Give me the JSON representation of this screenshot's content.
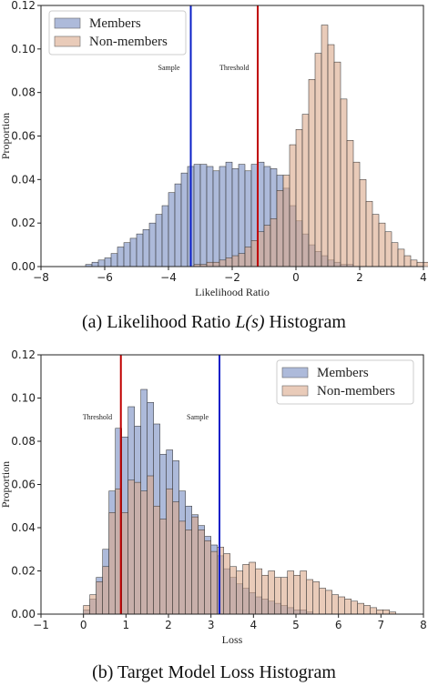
{
  "colors": {
    "members": "#8d9fcc",
    "non_members": "#dba98a",
    "threshold_line": "#c00000",
    "sample_line": "#0a1fc8"
  },
  "chart_data": [
    {
      "type": "histogram",
      "title": "",
      "caption": "(a) Likelihood Ratio L(s) Histogram",
      "caption_prefix": "(a) Likelihood Ratio ",
      "caption_math": "L(s)",
      "caption_suffix": " Histogram",
      "xlabel": "Likelihood Ratio",
      "ylabel": "Proportion",
      "xlim": [
        -8,
        4
      ],
      "ylim": [
        0,
        0.12
      ],
      "xticks": [
        -8,
        -6,
        -4,
        -2,
        0,
        2,
        4
      ],
      "xtick_labels": [
        "−8",
        "−6",
        "−4",
        "−2",
        "0",
        "2",
        "4"
      ],
      "yticks": [
        0,
        0.02,
        0.04,
        0.06,
        0.08,
        0.1,
        0.12
      ],
      "ytick_labels": [
        "0.00",
        "0.02",
        "0.04",
        "0.06",
        "0.08",
        "0.10",
        "0.12"
      ],
      "legend_position": "top-left",
      "series": [
        {
          "name": "Members",
          "color": "#8d9fcc",
          "bin_start": -6.6,
          "bin_width": 0.2,
          "values": [
            0.001,
            0.002,
            0.003,
            0.004,
            0.006,
            0.009,
            0.011,
            0.013,
            0.015,
            0.017,
            0.02,
            0.024,
            0.028,
            0.034,
            0.038,
            0.043,
            0.046,
            0.047,
            0.047,
            0.046,
            0.044,
            0.046,
            0.048,
            0.045,
            0.047,
            0.044,
            0.047,
            0.048,
            0.046,
            0.045,
            0.042,
            0.036,
            0.028,
            0.021,
            0.015,
            0.01,
            0.007,
            0.005,
            0.003,
            0.002,
            0.001,
            0.001
          ]
        },
        {
          "name": "Non-members",
          "color": "#dba98a",
          "bin_start": -3.2,
          "bin_width": 0.2,
          "values": [
            0.001,
            0.001,
            0.002,
            0.002,
            0.003,
            0.004,
            0.005,
            0.006,
            0.009,
            0.012,
            0.016,
            0.019,
            0.022,
            0.035,
            0.042,
            0.056,
            0.063,
            0.07,
            0.086,
            0.098,
            0.111,
            0.102,
            0.094,
            0.077,
            0.058,
            0.048,
            0.04,
            0.03,
            0.024,
            0.02,
            0.016,
            0.011,
            0.008,
            0.005,
            0.003,
            0.002,
            0.002,
            0.001,
            0.001,
            0.001
          ]
        }
      ],
      "vlines": [
        {
          "label": "Sample",
          "x": -3.3,
          "color": "#0a1fc8"
        },
        {
          "label": "Threshold",
          "x": -1.2,
          "color": "#c00000"
        }
      ]
    },
    {
      "type": "histogram",
      "title": "",
      "caption": "(b) Target Model Loss Histogram",
      "xlabel": "Loss",
      "ylabel": "Proportion",
      "xlim": [
        -1,
        8
      ],
      "ylim": [
        0,
        0.12
      ],
      "xticks": [
        -1,
        0,
        1,
        2,
        3,
        4,
        5,
        6,
        7,
        8
      ],
      "xtick_labels": [
        "−1",
        "0",
        "1",
        "2",
        "3",
        "4",
        "5",
        "6",
        "7",
        "8"
      ],
      "yticks": [
        0,
        0.02,
        0.04,
        0.06,
        0.08,
        0.1,
        0.12
      ],
      "ytick_labels": [
        "0.00",
        "0.02",
        "0.04",
        "0.06",
        "0.08",
        "0.10",
        "0.12"
      ],
      "legend_position": "top-right",
      "series": [
        {
          "name": "Members",
          "color": "#8d9fcc",
          "bin_start": 0.0,
          "bin_width": 0.15,
          "values": [
            0.002,
            0.007,
            0.017,
            0.03,
            0.057,
            0.086,
            0.082,
            0.096,
            0.087,
            0.104,
            0.098,
            0.088,
            0.074,
            0.076,
            0.071,
            0.057,
            0.05,
            0.046,
            0.041,
            0.036,
            0.032,
            0.027,
            0.021,
            0.017,
            0.014,
            0.012,
            0.01,
            0.008,
            0.007,
            0.006,
            0.005,
            0.004,
            0.003,
            0.002,
            0.002,
            0.001
          ]
        },
        {
          "name": "Non-members",
          "color": "#dba98a",
          "bin_start": 0.0,
          "bin_width": 0.15,
          "values": [
            0.004,
            0.009,
            0.015,
            0.022,
            0.047,
            0.058,
            0.047,
            0.062,
            0.061,
            0.057,
            0.064,
            0.05,
            0.044,
            0.058,
            0.052,
            0.043,
            0.039,
            0.045,
            0.039,
            0.034,
            0.029,
            0.031,
            0.028,
            0.022,
            0.02,
            0.023,
            0.024,
            0.021,
            0.018,
            0.02,
            0.017,
            0.017,
            0.02,
            0.018,
            0.02,
            0.016,
            0.015,
            0.012,
            0.011,
            0.009,
            0.008,
            0.007,
            0.006,
            0.005,
            0.004,
            0.003,
            0.002,
            0.002,
            0.001
          ]
        }
      ],
      "vlines": [
        {
          "label": "Threshold",
          "x": 0.88,
          "color": "#c00000"
        },
        {
          "label": "Sample",
          "x": 3.2,
          "color": "#0a1fc8"
        }
      ]
    }
  ]
}
